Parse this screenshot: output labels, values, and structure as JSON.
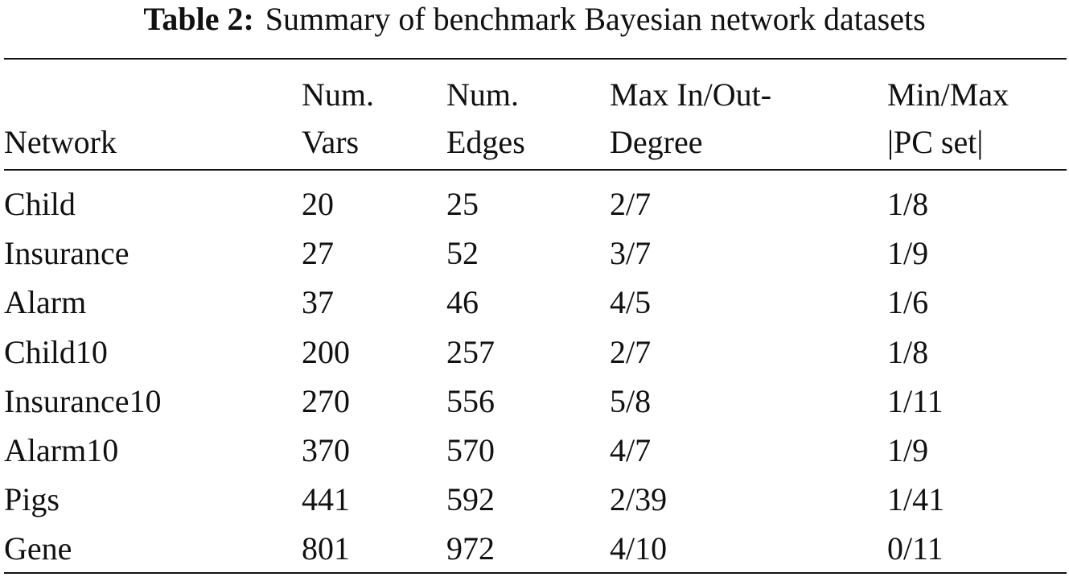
{
  "caption": {
    "label": "Table 2:",
    "text": "Summary of benchmark Bayesian network datasets"
  },
  "table": {
    "header": [
      [
        "Network"
      ],
      [
        "Num.",
        "Vars"
      ],
      [
        "Num.",
        "Edges"
      ],
      [
        "Max In/Out-",
        "Degree"
      ],
      [
        "Min/Max",
        "|PC set|"
      ]
    ],
    "rows": [
      [
        "Child",
        20,
        25,
        "2/7",
        "1/8"
      ],
      [
        "Insurance",
        27,
        52,
        "3/7",
        "1/9"
      ],
      [
        "Alarm",
        37,
        46,
        "4/5",
        "1/6"
      ],
      [
        "Child10",
        200,
        257,
        "2/7",
        "1/8"
      ],
      [
        "Insurance10",
        270,
        556,
        "5/8",
        "1/11"
      ],
      [
        "Alarm10",
        370,
        570,
        "4/7",
        "1/9"
      ],
      [
        "Pigs",
        441,
        592,
        "2/39",
        "1/41"
      ],
      [
        "Gene",
        801,
        972,
        "4/10",
        "0/11"
      ]
    ]
  }
}
